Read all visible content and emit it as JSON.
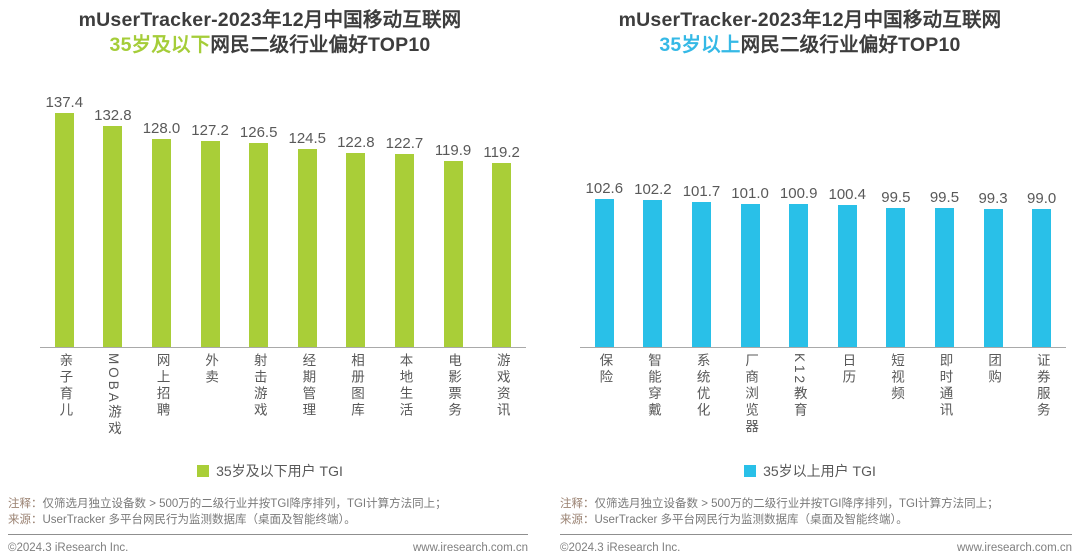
{
  "chart_data": [
    {
      "type": "bar",
      "title_line1": "mUserTracker-2023年12月中国移动互联网",
      "title_highlight": "35岁及以下",
      "title_rest": "网民二级行业偏好TOP10",
      "legend_label": "35岁及以下用户 TGI",
      "bar_color": "#a9ce38",
      "highlight_color": "#a5cd39",
      "categories": [
        "亲子育儿",
        "MOBA游戏",
        "网上招聘",
        "外卖",
        "射击游戏",
        "经期管理",
        "相册图库",
        "本地生活",
        "电影票务",
        "游戏资讯"
      ],
      "values": [
        137.4,
        132.8,
        128.0,
        127.2,
        126.5,
        124.5,
        122.8,
        122.7,
        119.9,
        119.2
      ],
      "ylabel": "TGI",
      "ylim": [
        52,
        150
      ],
      "grid": false,
      "legend_position": "bottom-center"
    },
    {
      "type": "bar",
      "title_line1": "mUserTracker-2023年12月中国移动互联网",
      "title_highlight": "35岁以上",
      "title_rest": "网民二级行业偏好TOP10",
      "legend_label": "35岁以上用户 TGI",
      "bar_color": "#29c0e8",
      "highlight_color": "#35b9e6",
      "categories": [
        "保险",
        "智能穿戴",
        "系统优化",
        "厂商浏览器",
        "K12教育",
        "日历",
        "短视频",
        "即时通讯",
        "团购",
        "证券服务"
      ],
      "values": [
        102.6,
        102.2,
        101.7,
        101.0,
        100.9,
        100.4,
        99.5,
        99.5,
        99.3,
        99.0
      ],
      "ylabel": "TGI",
      "ylim": [
        50.5,
        145
      ],
      "grid": false,
      "legend_position": "bottom-center"
    }
  ],
  "footer": {
    "note_label": "注释：",
    "note_text": "仅筛选月独立设备数 > 500万的二级行业并按TGI降序排列，TGI计算方法同上；",
    "source_label": "来源：",
    "source_text": "UserTracker 多平台网民行为监测数据库（桌面及智能终端）。",
    "copyright": "©2024.3 iResearch Inc.",
    "website": "www.iresearch.com.cn"
  }
}
